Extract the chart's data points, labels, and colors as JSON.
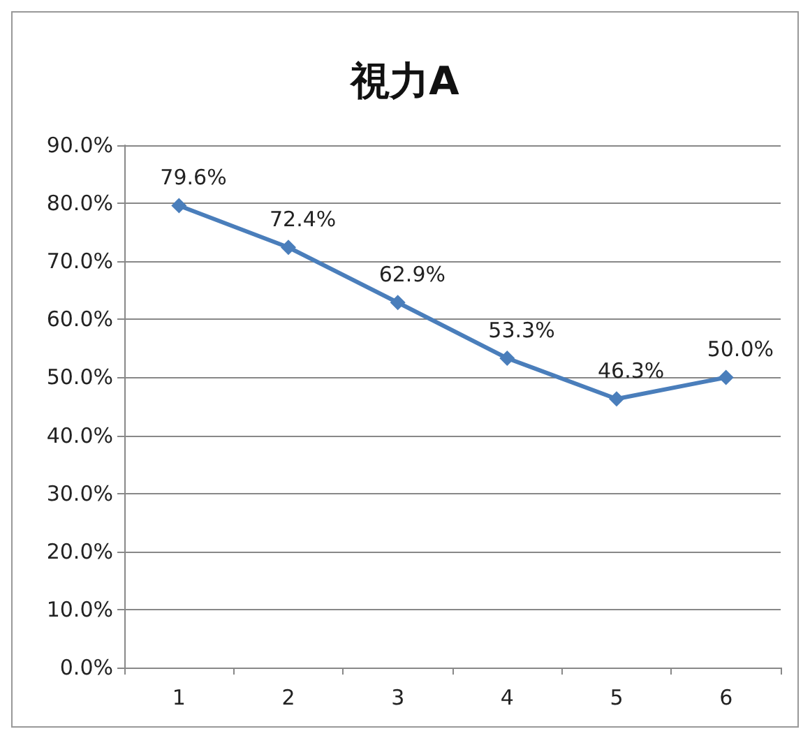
{
  "chart_data": {
    "type": "line",
    "title": "視力A",
    "categories": [
      "1",
      "2",
      "3",
      "4",
      "5",
      "6"
    ],
    "series": [
      {
        "color": "#4a7ebb",
        "values": [
          79.6,
          72.4,
          62.9,
          53.3,
          46.3,
          50.0
        ],
        "value_labels": [
          "79.6%",
          "72.4%",
          "62.9%",
          "53.3%",
          "46.3%",
          "50.0%"
        ]
      }
    ],
    "ylim": [
      0,
      90
    ],
    "yticks": [
      {
        "value": 0,
        "label": "0.0%"
      },
      {
        "value": 10,
        "label": "10.0%"
      },
      {
        "value": 20,
        "label": "20.0%"
      },
      {
        "value": 30,
        "label": "30.0%"
      },
      {
        "value": 40,
        "label": "40.0%"
      },
      {
        "value": 50,
        "label": "50.0%"
      },
      {
        "value": 60,
        "label": "60.0%"
      },
      {
        "value": 70,
        "label": "70.0%"
      },
      {
        "value": 80,
        "label": "80.0%"
      },
      {
        "value": 90,
        "label": "90.0%"
      }
    ],
    "grid": "y",
    "marker": "diamond",
    "line_style": "solid"
  }
}
